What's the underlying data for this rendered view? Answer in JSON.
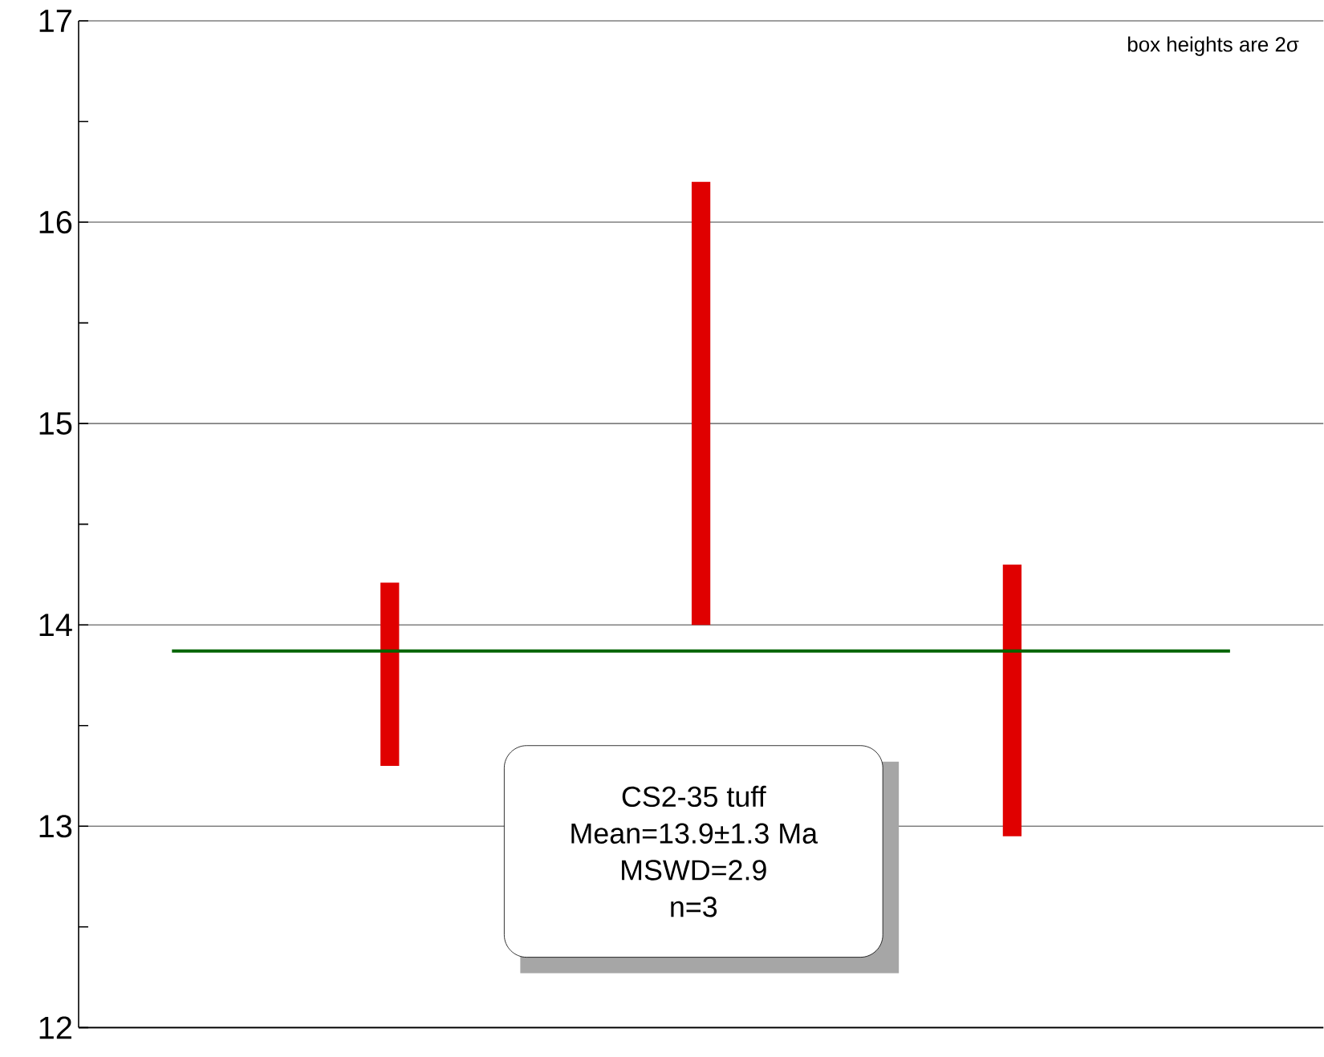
{
  "chart_data": {
    "type": "bar",
    "categories": [
      null,
      null,
      null
    ],
    "base": [
      13.3,
      14.0,
      12.95
    ],
    "values": [
      0.91,
      2.2,
      1.35
    ],
    "color": "#e00000",
    "ylim": [
      12,
      17
    ],
    "yticks": [
      12,
      {
        "value": 12.5,
        "label": null
      },
      13,
      {
        "value": 13.5,
        "label": null
      },
      14,
      {
        "value": 14.5,
        "label": null
      },
      15,
      {
        "value": 15.5,
        "label": null
      },
      16,
      {
        "value": 16.5,
        "label": null
      },
      17
    ],
    "grid": "y",
    "ref_lines": [
      {
        "axis": "y",
        "value": 13.87,
        "color": "#006400"
      }
    ],
    "annotations": [
      "box heights are 2σ",
      "CS2-35 tuff",
      "Mean=13.9±1.3 Ma",
      "MSWD=2.9",
      "n=3"
    ]
  }
}
